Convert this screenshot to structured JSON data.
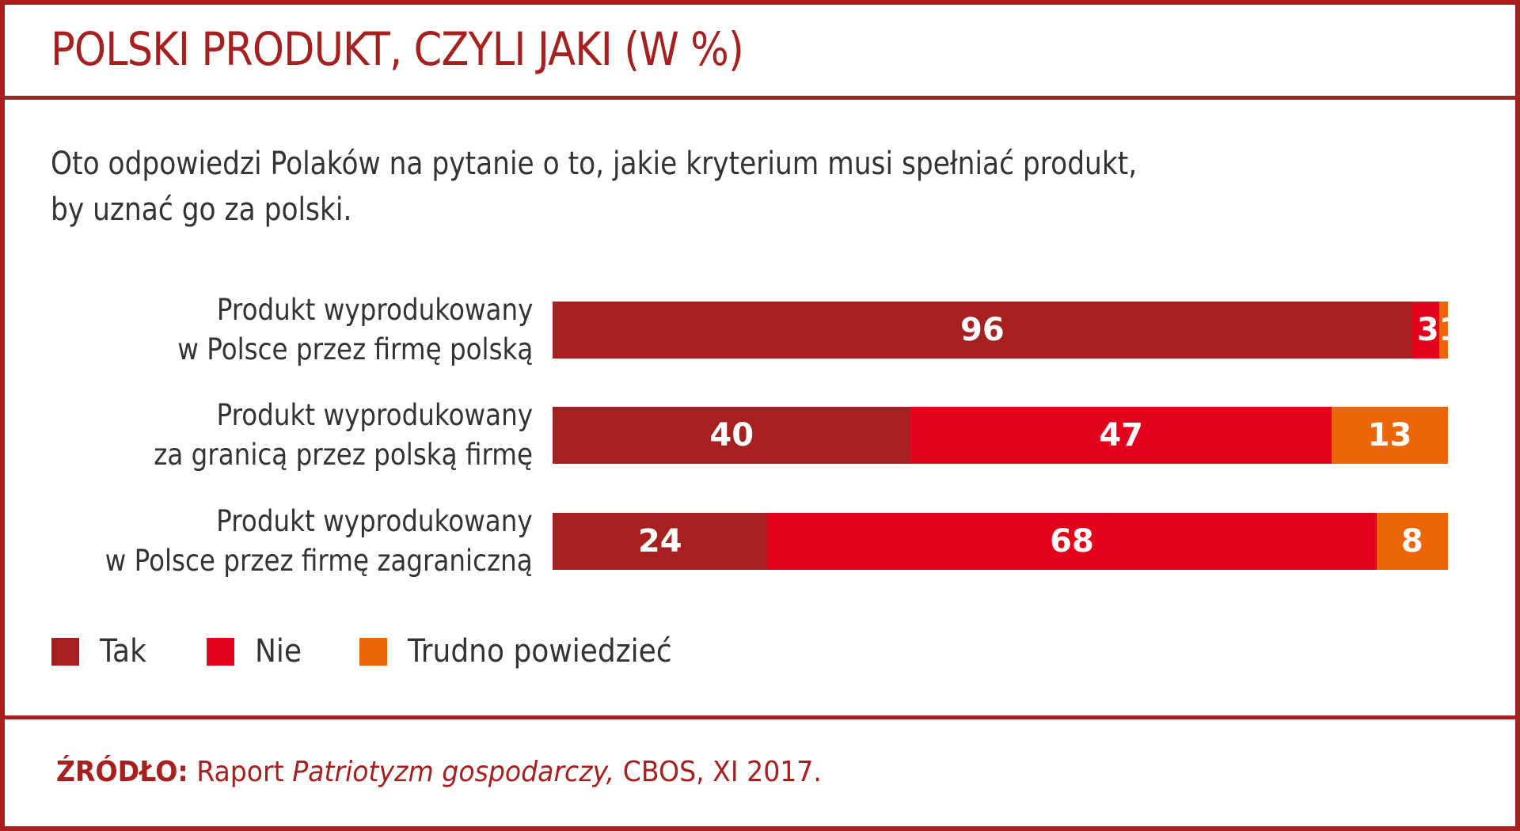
{
  "header": {
    "title": "POLSKI PRODUKT, CZYLI JAKI (W %)"
  },
  "subtitle": {
    "line1": "Oto odpowiedzi Polaków na pytanie o to, jakie kryterium musi spełniać produkt,",
    "line2": "by uznać go za polski."
  },
  "colors": {
    "tak": "#a6201f",
    "nie": "#e2001a",
    "trudno": "#ec6608",
    "frame": "#a6201f"
  },
  "chart_data": {
    "type": "bar",
    "orientation": "horizontal",
    "stacked": true,
    "title": "POLSKI PRODUKT, CZYLI JAKI (W %)",
    "categories": [
      [
        "Produkt wyprodukowany",
        "w Polsce przez firmę polską"
      ],
      [
        "Produkt wyprodukowany",
        "za granicą przez polską firmę"
      ],
      [
        "Produkt wyprodukowany",
        "w Polsce przez firmę zagraniczną"
      ]
    ],
    "series": [
      {
        "name": "Tak",
        "values": [
          96,
          40,
          24
        ]
      },
      {
        "name": "Nie",
        "values": [
          3,
          47,
          68
        ]
      },
      {
        "name": "Trudno powiedzieć",
        "values": [
          1,
          13,
          8
        ]
      }
    ],
    "xlim": [
      0,
      100
    ],
    "legend": "bottom-left"
  },
  "footer": {
    "source_label": "ŹRÓDŁO:",
    "source_pre": " Raport ",
    "source_italic": "Patriotyzm gospodarczy,",
    "source_post": " CBOS, XI 2017."
  }
}
